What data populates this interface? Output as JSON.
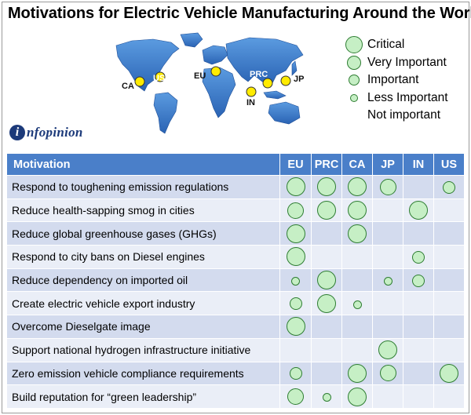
{
  "title": "Motivations for Electric Vehicle Manufacturing Around the World",
  "map": {
    "labels": [
      "CA",
      "US",
      "EU",
      "PRC",
      "JP",
      "IN"
    ]
  },
  "legend": [
    {
      "label": "Critical",
      "level": 4
    },
    {
      "label": "Very Important",
      "level": 3
    },
    {
      "label": "Important",
      "level": 2
    },
    {
      "label": "Less Important",
      "level": 1
    },
    {
      "label": "Not important",
      "level": 0
    }
  ],
  "logo": {
    "initial": "i",
    "text": "nfopinion"
  },
  "table": {
    "header": "Motivation",
    "columns": [
      "EU",
      "PRC",
      "CA",
      "JP",
      "IN",
      "US"
    ],
    "rows": [
      {
        "label": "Respond to toughening emission regulations",
        "levels": [
          4,
          4,
          4,
          3,
          0,
          2
        ]
      },
      {
        "label": "Reduce health-sapping smog in cities",
        "levels": [
          3,
          4,
          4,
          0,
          4,
          0
        ]
      },
      {
        "label": "Reduce global greenhouse gases (GHGs)",
        "levels": [
          4,
          0,
          4,
          0,
          0,
          0
        ]
      },
      {
        "label": "Respond to city bans on Diesel engines",
        "levels": [
          4,
          0,
          0,
          0,
          2,
          0
        ]
      },
      {
        "label": "Reduce dependency on imported oil",
        "levels": [
          1,
          4,
          0,
          1,
          2,
          0
        ]
      },
      {
        "label": "Create electric vehicle export industry",
        "levels": [
          2,
          4,
          1,
          0,
          0,
          0
        ]
      },
      {
        "label": "Overcome Dieselgate image",
        "levels": [
          4,
          0,
          0,
          0,
          0,
          0
        ]
      },
      {
        "label": "Support national hydrogen infrastructure initiative",
        "levels": [
          0,
          0,
          0,
          4,
          0,
          0
        ]
      },
      {
        "label": "Zero emission vehicle compliance requirements",
        "levels": [
          2,
          0,
          4,
          3,
          0,
          4
        ]
      },
      {
        "label": "Build reputation for “green leadership”",
        "levels": [
          3,
          1,
          4,
          0,
          0,
          0
        ]
      }
    ]
  },
  "colors": {
    "header_bg": "#4a7fc9",
    "row_dark": "#d3dbee",
    "row_light": "#eaeef7",
    "circle_fill": "#c6efc5",
    "circle_stroke": "#2e7d32",
    "map_land": "#3a78c8",
    "marker_fill": "#ffeb00"
  }
}
